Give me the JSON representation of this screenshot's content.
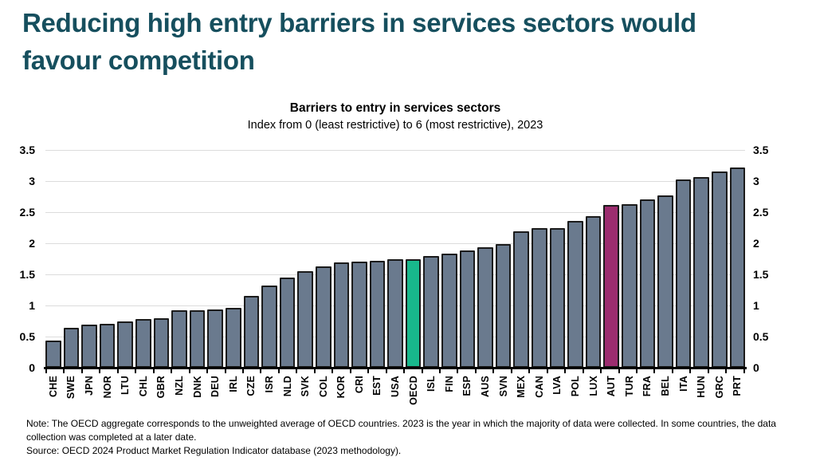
{
  "slide": {
    "title": "Reducing high entry barriers in services sectors would favour competition",
    "note": "Note: The OECD aggregate corresponds to the unweighted average of OECD countries. 2023 is the year in which the majority of data were collected. In some countries, the data collection was completed at a later date.",
    "source": "Source: OECD 2024 Product Market Regulation Indicator database (2023 methodology)."
  },
  "colors": {
    "title_text": "#164f5e",
    "bar_default": "#6a7a8e",
    "bar_border": "#1b1b1b",
    "gridline": "#dcdcdc",
    "axis_line": "#000000",
    "oecd_highlight": "#18b88c",
    "austria_highlight": "#9c2d6f"
  },
  "chart_data": {
    "type": "bar",
    "title": "Barriers to entry in services sectors",
    "subtitle": "Index from 0 (least restrictive) to 6 (most restrictive), 2023",
    "categories": [
      "CHE",
      "SWE",
      "JPN",
      "NOR",
      "LTU",
      "CHL",
      "GBR",
      "NZL",
      "DNK",
      "DEU",
      "IRL",
      "CZE",
      "ISR",
      "NLD",
      "SVK",
      "COL",
      "KOR",
      "CRI",
      "EST",
      "USA",
      "OECD",
      "ISL",
      "FIN",
      "ESP",
      "AUS",
      "SVN",
      "MEX",
      "CAN",
      "LVA",
      "POL",
      "LUX",
      "AUT",
      "TUR",
      "FRA",
      "BEL",
      "ITA",
      "HUN",
      "GRC",
      "PRT"
    ],
    "values": [
      0.44,
      0.64,
      0.69,
      0.71,
      0.75,
      0.78,
      0.79,
      0.92,
      0.93,
      0.94,
      0.96,
      1.16,
      1.32,
      1.45,
      1.55,
      1.63,
      1.69,
      1.71,
      1.72,
      1.75,
      1.75,
      1.79,
      1.84,
      1.89,
      1.94,
      1.99,
      2.19,
      2.25,
      2.25,
      2.36,
      2.44,
      2.61,
      2.63,
      2.7,
      2.77,
      3.02,
      3.06,
      3.16,
      3.22
    ],
    "highlights": {
      "OECD": "#18b88c",
      "AUT": "#9c2d6f"
    },
    "ylim": [
      0,
      3.5
    ],
    "yticks": [
      0,
      0.5,
      1,
      1.5,
      2,
      2.5,
      3,
      3.5
    ],
    "ytick_labels": [
      "0",
      "0.5",
      "1",
      "1.5",
      "2",
      "2.5",
      "3",
      "3.5"
    ],
    "grid": true,
    "legend": "none",
    "axis_label_sides": [
      "left",
      "right"
    ]
  }
}
